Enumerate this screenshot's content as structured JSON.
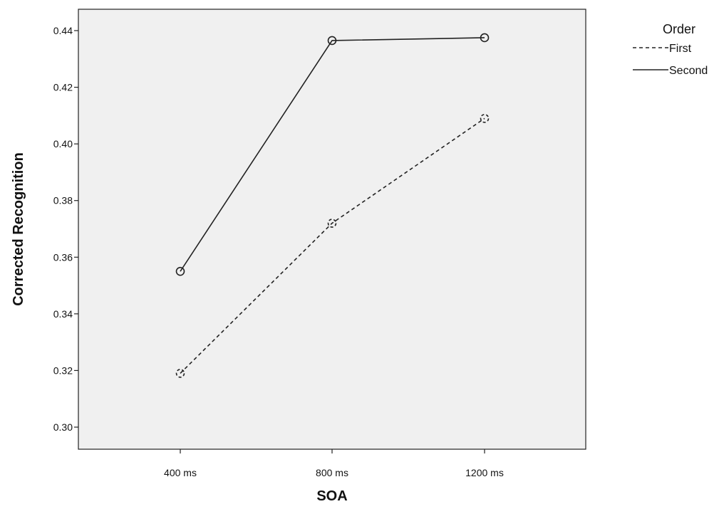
{
  "chart_data": {
    "type": "line",
    "categories": [
      "400 ms",
      "800 ms",
      "1200 ms"
    ],
    "xlabel": "SOA",
    "ylabel": "Corrected Recognition",
    "ylim": [
      0.295,
      0.445
    ],
    "yticks": [
      0.3,
      0.32,
      0.34,
      0.36,
      0.38,
      0.4,
      0.42,
      0.44
    ],
    "grid": false,
    "legend": {
      "title": "Order",
      "placement": "right"
    },
    "series": [
      {
        "name": "First",
        "values": [
          0.319,
          0.372,
          0.409
        ],
        "line_style": "dashed",
        "color": "#222222"
      },
      {
        "name": "Second",
        "values": [
          0.355,
          0.4365,
          0.4375
        ],
        "line_style": "solid",
        "color": "#222222"
      }
    ],
    "plot_background": "#f0f0f0"
  }
}
